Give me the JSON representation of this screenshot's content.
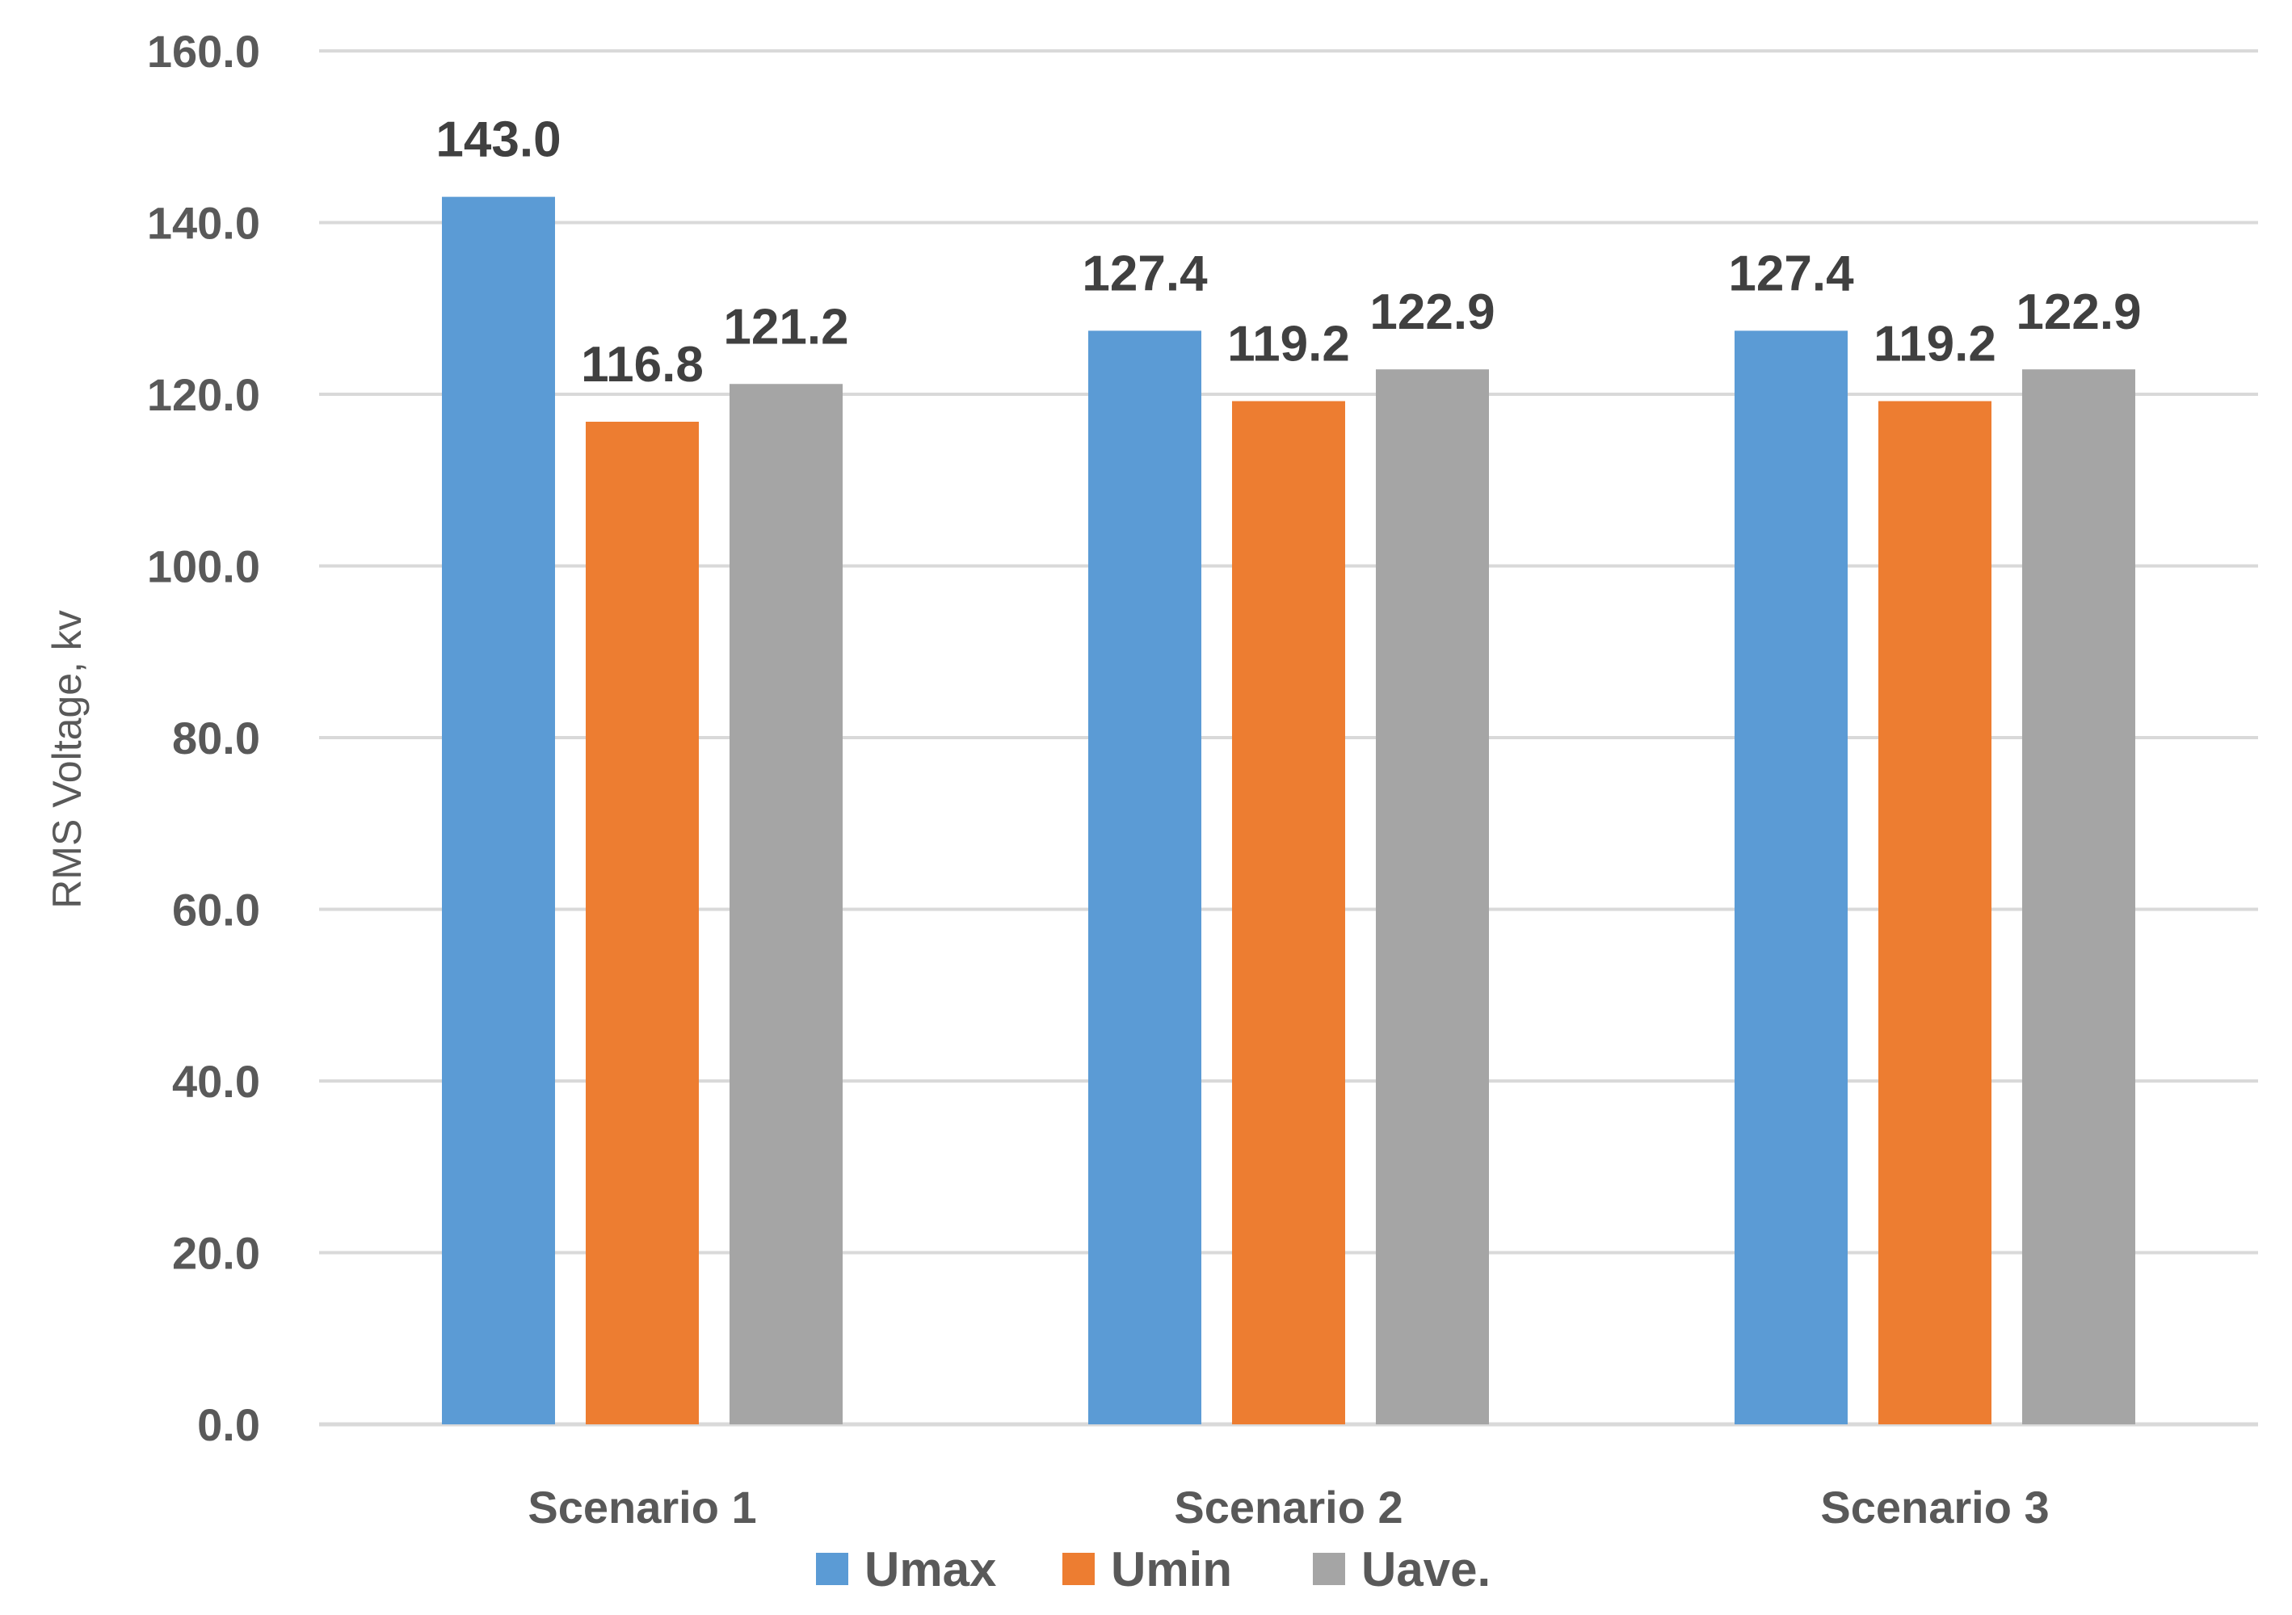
{
  "chart_data": {
    "type": "bar",
    "title": "",
    "xlabel": "",
    "ylabel": "RMS Voltage, kv",
    "ylim": [
      0,
      160
    ],
    "yticks": [
      "0.0",
      "20.0",
      "40.0",
      "60.0",
      "80.0",
      "100.0",
      "120.0",
      "140.0",
      "160.0"
    ],
    "categories": [
      "Scenario 1",
      "Scenario 2",
      "Scenario 3"
    ],
    "series": [
      {
        "name": "Umax",
        "color": "#5b9bd5",
        "values": [
          143.0,
          127.4,
          127.4
        ],
        "labels": [
          "143.0",
          "127.4",
          "127.4"
        ]
      },
      {
        "name": "Umin",
        "color": "#ed7d31",
        "values": [
          116.8,
          119.2,
          119.2
        ],
        "labels": [
          "116.8",
          "119.2",
          "119.2"
        ]
      },
      {
        "name": "Uave.",
        "color": "#a5a5a5",
        "values": [
          121.2,
          122.9,
          122.9
        ],
        "labels": [
          "121.2",
          "122.9",
          "122.9"
        ]
      }
    ],
    "grid": true,
    "legend_position": "bottom"
  }
}
